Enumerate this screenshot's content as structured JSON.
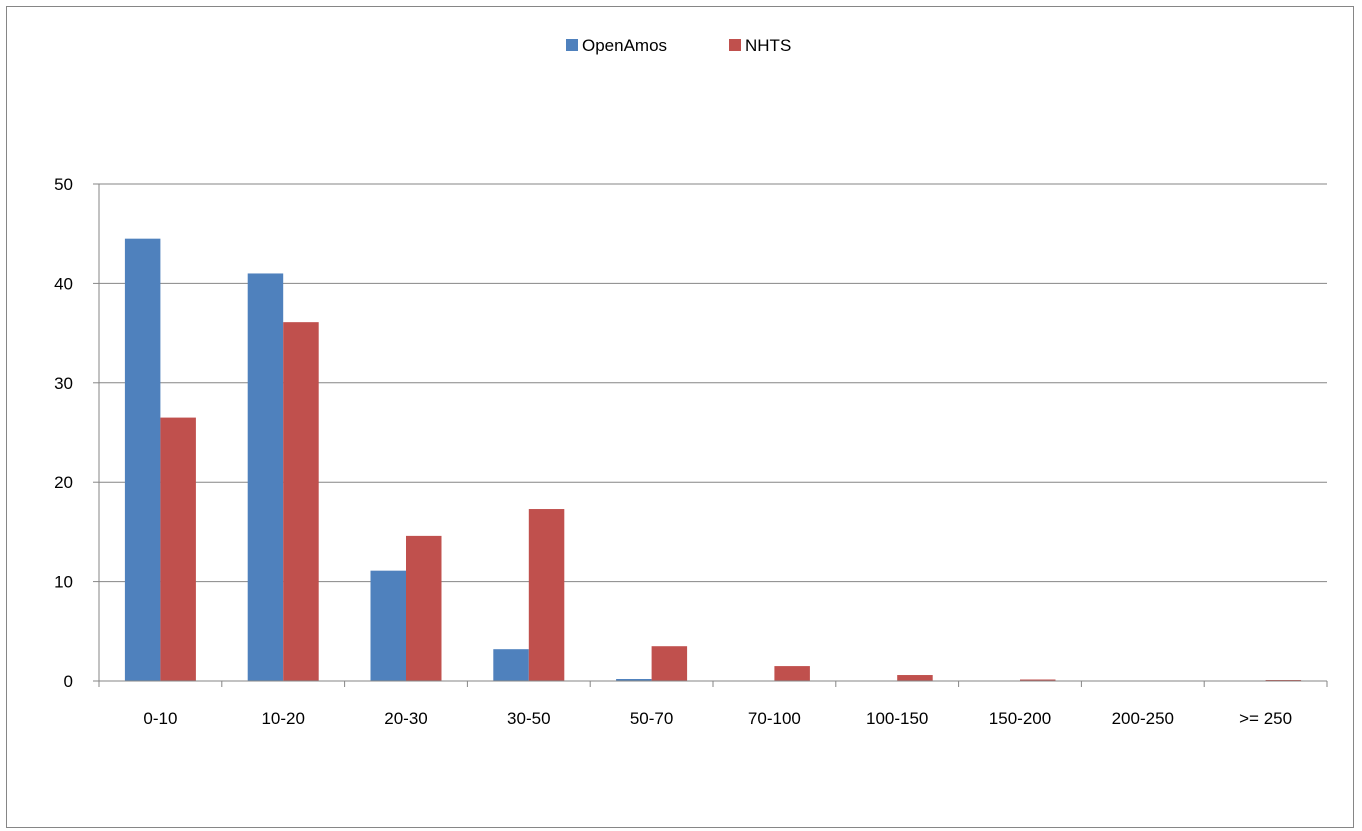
{
  "chart_data": {
    "type": "bar",
    "categories": [
      "0-10",
      "10-20",
      "20-30",
      "30-50",
      "50-70",
      "70-100",
      "100-150",
      "150-200",
      "200-250",
      ">= 250"
    ],
    "series": [
      {
        "name": "OpenAmos",
        "color": "#4F81BD",
        "values": [
          44.5,
          41.0,
          11.1,
          3.2,
          0.2,
          0.0,
          0.0,
          0.0,
          0.0,
          0.0
        ]
      },
      {
        "name": "NHTS",
        "color": "#C0504D",
        "values": [
          26.5,
          36.1,
          14.6,
          17.3,
          3.5,
          1.5,
          0.6,
          0.15,
          0.05,
          0.1
        ]
      }
    ],
    "yticks": [
      0,
      10,
      20,
      30,
      40,
      50
    ],
    "ylim": [
      0,
      50
    ],
    "grid": true,
    "legend_position": "top"
  }
}
